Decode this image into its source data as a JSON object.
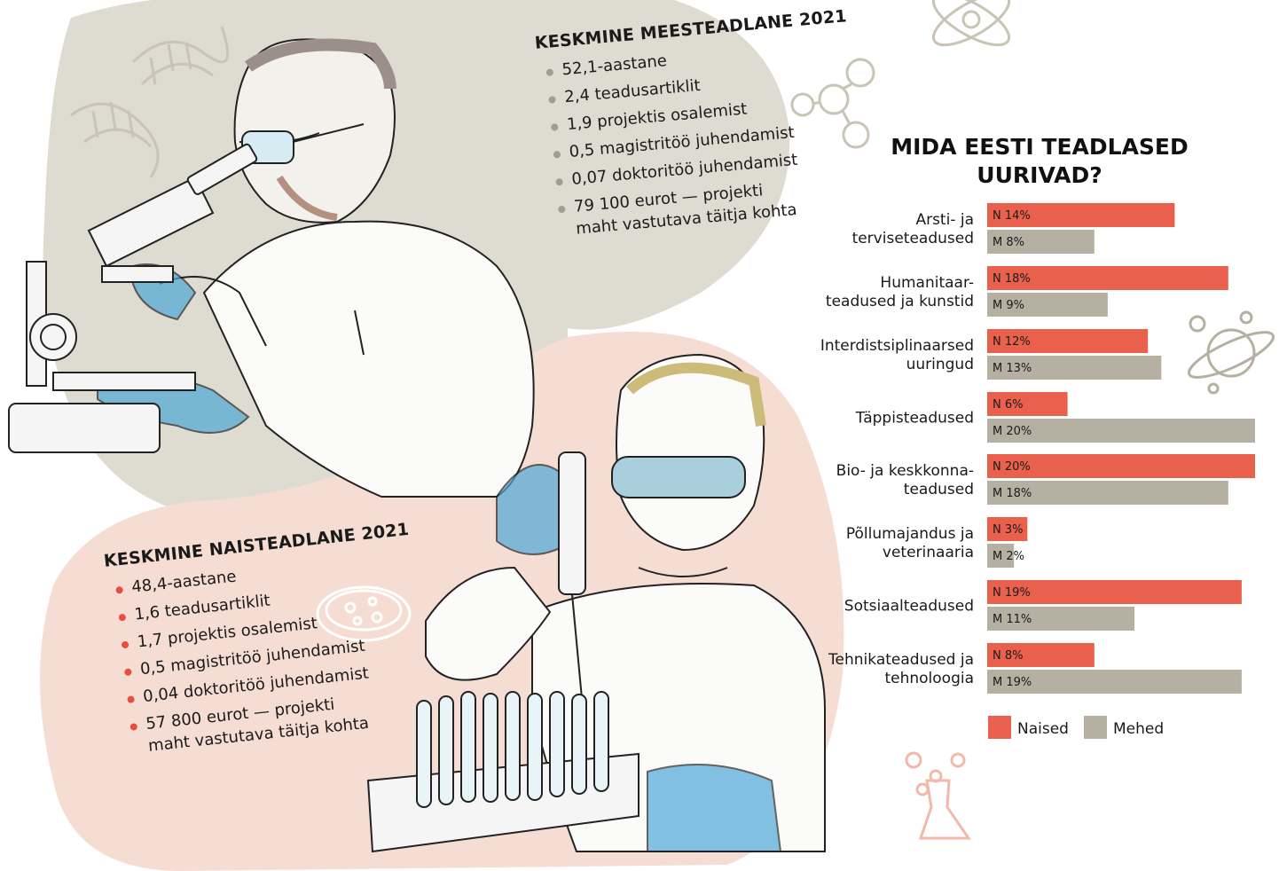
{
  "men_card": {
    "title": "KESKMINE MEESTEADLANE 2021",
    "items": [
      "52,1-aastane",
      "2,4 teadusartiklit",
      "1,9 projektis osalemist",
      "0,5 magistritöö juhendamist",
      "0,07 doktoritöö juhendamist",
      "79 100 eurot — projekti maht vastutava täitja kohta"
    ]
  },
  "women_card": {
    "title": "KESKMINE NAISTEADLANE 2021",
    "items": [
      "48,4-aastane",
      "1,6 teadusartiklit",
      "1,7 projektis osalemist",
      "0,5 magistritöö juhendamist",
      "0,04 doktoritöö juhendamist",
      "57 800 eurot — projekti maht vastutava täitja kohta"
    ]
  },
  "colors": {
    "women": "#e9604d",
    "men": "#b5b0a1",
    "beige_blob": "#dedbd1",
    "pink_blob": "#f6ddd3"
  },
  "chart_data": {
    "type": "bar",
    "orientation": "horizontal",
    "title": "MIDA EESTI TEADLASED UURIVAD?",
    "categories": [
      [
        "Arsti- ja",
        "terviseteadused"
      ],
      [
        "Humanitaar-",
        "teadused ja kunstid"
      ],
      [
        "Interdistsiplinaarsed",
        "uuringud"
      ],
      [
        "Täppisteadused"
      ],
      [
        "Bio- ja keskkonna-",
        "teadused"
      ],
      [
        "Põllumajandus ja",
        "veterinaaria"
      ],
      [
        "Sotsiaalteadused"
      ],
      [
        "Tehnikateadused ja",
        "tehnoloogia"
      ]
    ],
    "series": [
      {
        "name": "Naised",
        "prefix": "N",
        "color": "#e9604d",
        "values": [
          14,
          18,
          12,
          6,
          20,
          3,
          19,
          8
        ],
        "labels": [
          "N 14%",
          "N 18%",
          "N 12%",
          "N 6%",
          "N 20%",
          "N 3%",
          "N 19%",
          "N 8%"
        ]
      },
      {
        "name": "Mehed",
        "prefix": "M",
        "color": "#b5b0a1",
        "values": [
          8,
          9,
          13,
          20,
          18,
          2,
          11,
          19
        ],
        "labels": [
          "M 8%",
          "M 9%",
          "M 13%",
          "M 20%",
          "M 18%",
          "M 2%",
          "M 11%",
          "M 19%"
        ]
      }
    ],
    "unit": "%",
    "xlim": [
      0,
      20
    ],
    "grid": false,
    "legend": "bottom"
  }
}
